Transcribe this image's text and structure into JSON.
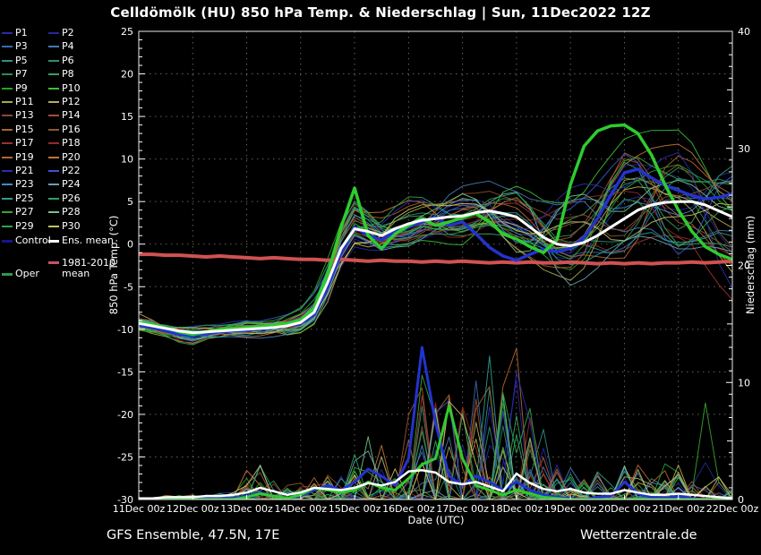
{
  "footer": {
    "left": "GFS Ensemble, 47.5N, 17E",
    "right": "Wetterzentrale.de"
  },
  "legend": {
    "members": [
      {
        "label": "P1",
        "color": "#2a2aa8"
      },
      {
        "label": "P2",
        "color": "#26269e"
      },
      {
        "label": "P3",
        "color": "#3a6ab4"
      },
      {
        "label": "P4",
        "color": "#4478b0"
      },
      {
        "label": "P5",
        "color": "#2e8f86"
      },
      {
        "label": "P6",
        "color": "#2e9070"
      },
      {
        "label": "P7",
        "color": "#2e8b57"
      },
      {
        "label": "P8",
        "color": "#3c9d66"
      },
      {
        "label": "P9",
        "color": "#28a028"
      },
      {
        "label": "P10",
        "color": "#38c038"
      },
      {
        "label": "P11",
        "color": "#a8a848"
      },
      {
        "label": "P12",
        "color": "#b4ae56"
      },
      {
        "label": "P13",
        "color": "#8b4a2a"
      },
      {
        "label": "P14",
        "color": "#a0522d"
      },
      {
        "label": "P15",
        "color": "#a86432"
      },
      {
        "label": "P16",
        "color": "#8b5a2b"
      },
      {
        "label": "P17",
        "color": "#a03030"
      },
      {
        "label": "P18",
        "color": "#962828"
      },
      {
        "label": "P19",
        "color": "#b46632"
      },
      {
        "label": "P20",
        "color": "#c27436"
      },
      {
        "label": "P21",
        "color": "#2c2cb0"
      },
      {
        "label": "P22",
        "color": "#3a55cc"
      },
      {
        "label": "P23",
        "color": "#4488cc"
      },
      {
        "label": "P24",
        "color": "#6aa0b4"
      },
      {
        "label": "P25",
        "color": "#2e9e90"
      },
      {
        "label": "P26",
        "color": "#2ea066"
      },
      {
        "label": "P27",
        "color": "#32a632"
      },
      {
        "label": "P28",
        "color": "#74c489"
      },
      {
        "label": "P29",
        "color": "#2aa64e"
      },
      {
        "label": "P30",
        "color": "#c2c266"
      }
    ],
    "control": {
      "label": "Control",
      "color": "#16168e"
    },
    "ens_mean": {
      "label": "Ens. mean",
      "color": "#ffffff"
    },
    "climate": {
      "label": "1981-2010 mean",
      "color": "#c25565"
    },
    "oper": {
      "label": "Oper",
      "color": "#2e9a50"
    }
  },
  "chart_data": {
    "type": "line",
    "title": "Celldömölk  (HU)  850 hPa Temp. & Niederschlag | Sun, 11Dec2022 12Z",
    "x_axis": {
      "label": "Date (UTC)",
      "tick_labels": [
        "11Dec 00z",
        "12Dec 00z",
        "13Dec 00z",
        "14Dec 00z",
        "15Dec 00z",
        "16Dec 00z",
        "17Dec 00z",
        "18Dec 00z",
        "19Dec 00z",
        "20Dec 00z",
        "21Dec 00z",
        "22Dec 00z"
      ],
      "steps_per_day": 4,
      "n_steps": 45
    },
    "y_left": {
      "label": "850 hPa Temp. (°C)",
      "min": -30,
      "max": 25,
      "tick_step": 5,
      "tick_labels": [
        "25",
        "20",
        "15",
        "10",
        "5",
        "0",
        "-5",
        "-10",
        "-15",
        "-20",
        "-25",
        "-30"
      ]
    },
    "y_right": {
      "label": "Niederschlag (mm)",
      "min": 0,
      "max": 40,
      "tick_step": 10,
      "tick_labels": [
        "40",
        "30",
        "20",
        "10",
        "0"
      ]
    },
    "grid": true,
    "legend_position": "left",
    "colors": {
      "control": "#2433cc",
      "oper": "#2ecc2e",
      "ens_mean": "#ffffff",
      "climate_mean": "#cf5252",
      "grid": "#6a6054",
      "frame": "#e8e8e8",
      "members": [
        "#2a2aa8",
        "#26269e",
        "#3a6ab4",
        "#4478b0",
        "#2e8f86",
        "#2e9070",
        "#2e8b57",
        "#3c9d66",
        "#28a028",
        "#38c038",
        "#a8a848",
        "#b4ae56",
        "#8b4a2a",
        "#a0522d",
        "#a86432",
        "#8b5a2b",
        "#a03030",
        "#962828",
        "#b46632",
        "#c27436",
        "#2c2cb0",
        "#3a55cc",
        "#4488cc",
        "#6aa0b4",
        "#2e9e90",
        "#2ea066",
        "#32a632",
        "#74c489",
        "#2aa64e",
        "#c2c266"
      ]
    },
    "series": {
      "temp": {
        "ens_mean": [
          -9.3,
          -9.6,
          -9.9,
          -10.2,
          -10.4,
          -10.3,
          -10.2,
          -10.1,
          -10,
          -9.9,
          -9.8,
          -9.6,
          -9.2,
          -8,
          -4.5,
          -0.5,
          1.8,
          1.5,
          1,
          1.8,
          2.4,
          2.8,
          3,
          3.2,
          3.3,
          3.7,
          3.9,
          3.6,
          3.2,
          2,
          0.8,
          0,
          -0.2,
          0.2,
          1,
          2,
          3,
          4,
          4.6,
          4.9,
          5,
          5,
          4.6,
          3.9,
          3.2
        ],
        "control": [
          -9.5,
          -9.8,
          -10.2,
          -10.6,
          -10.8,
          -10.5,
          -10.3,
          -10.2,
          -10.1,
          -10,
          -9.8,
          -9.6,
          -9.3,
          -8.3,
          -5,
          -1,
          2,
          1,
          0.5,
          1.5,
          2,
          2.6,
          3.1,
          2.2,
          2.6,
          1.2,
          -0.4,
          -1.4,
          -1.9,
          -1.2,
          -0.6,
          -0.9,
          -0.5,
          0.8,
          3,
          5.8,
          8.4,
          8.8,
          7.8,
          6.9,
          6.3,
          5.7,
          5.3,
          5.5,
          5.9
        ],
        "oper": [
          -9.2,
          -9.4,
          -9.8,
          -10.3,
          -10.6,
          -10.3,
          -10,
          -9.9,
          -9.8,
          -9.7,
          -9.5,
          -9.3,
          -8.9,
          -7.5,
          -3.5,
          2,
          6.6,
          1,
          -0.5,
          1.2,
          2.2,
          3,
          2.2,
          2.6,
          3.1,
          3.6,
          2.6,
          1.2,
          0.6,
          -0.3,
          -1,
          0.5,
          7,
          11.5,
          13.3,
          13.9,
          14,
          13,
          10.5,
          7,
          4,
          1.5,
          -0.3,
          -1.2,
          -1.8
        ],
        "climate_mean": [
          -1.2,
          -1.2,
          -1.3,
          -1.3,
          -1.4,
          -1.5,
          -1.4,
          -1.5,
          -1.6,
          -1.7,
          -1.6,
          -1.7,
          -1.8,
          -1.8,
          -1.9,
          -1.8,
          -1.9,
          -2,
          -1.9,
          -2,
          -2,
          -2.1,
          -2,
          -2.1,
          -2,
          -2.1,
          -2.2,
          -2.1,
          -2.2,
          -2.1,
          -2.2,
          -2.2,
          -2.1,
          -2.2,
          -2.3,
          -2.2,
          -2.3,
          -2.2,
          -2.3,
          -2.2,
          -2.2,
          -2.1,
          -2.2,
          -2.1,
          -2
        ],
        "envelope_min": [
          -10.2,
          -10.6,
          -11,
          -11.4,
          -11.6,
          -11.4,
          -11.2,
          -11.1,
          -11,
          -11,
          -10.9,
          -10.7,
          -10.4,
          -9.6,
          -7.5,
          -4,
          -1.5,
          -1.8,
          -2,
          -1,
          -0.5,
          0,
          0.2,
          0.2,
          0.4,
          0.6,
          0.2,
          -0.5,
          -1.2,
          -2.2,
          -3.2,
          -3.6,
          -3.8,
          -3.5,
          -3.2,
          -2.8,
          -2.3,
          -1.5,
          -0.8,
          -1,
          -1.2,
          -1.8,
          -2.8,
          -4,
          -5.2
        ],
        "envelope_max": [
          -8.4,
          -8.7,
          -9,
          -9.3,
          -9.4,
          -9.3,
          -9.1,
          -9,
          -8.9,
          -8.8,
          -8.6,
          -8.2,
          -7.6,
          -5.5,
          -1.5,
          2.5,
          5,
          4.5,
          4,
          4.5,
          5.2,
          5.8,
          6.2,
          6.5,
          6.8,
          7.2,
          7.5,
          7.2,
          6.8,
          6.2,
          5.8,
          5.6,
          6,
          7,
          8.5,
          10,
          11.5,
          12.3,
          12.8,
          13.1,
          13.2,
          12.5,
          11.5,
          10.5,
          10
        ]
      },
      "precip": {
        "ens_mean": [
          0.1,
          0.1,
          0.2,
          0.2,
          0.2,
          0.3,
          0.3,
          0.4,
          0.6,
          1,
          0.7,
          0.4,
          0.6,
          1,
          0.9,
          0.8,
          1,
          1.4,
          1.2,
          1.5,
          2.4,
          2.5,
          2.3,
          1.5,
          1.3,
          1.5,
          1.1,
          0.7,
          2.2,
          1.4,
          0.9,
          0.7,
          0.9,
          0.6,
          0.5,
          0.5,
          0.8,
          0.6,
          0.4,
          0.4,
          0.5,
          0.4,
          0.3,
          0.2,
          0.1
        ],
        "control": [
          0,
          0,
          0,
          0,
          0,
          0.1,
          0.1,
          0.1,
          0.3,
          0.6,
          0.3,
          0.1,
          0.3,
          0.8,
          1.2,
          0.8,
          1.5,
          2.6,
          2,
          1.2,
          3.5,
          13,
          6.5,
          2,
          1.2,
          2,
          1.5,
          0.8,
          1.5,
          0.8,
          0.4,
          0.2,
          0.1,
          0,
          0.2,
          0.3,
          1.5,
          0.5,
          0.2,
          0.1,
          0.3,
          0.1,
          0,
          0,
          0
        ],
        "oper": [
          0,
          0,
          0,
          0,
          0,
          0,
          0,
          0,
          0.2,
          0.5,
          0.3,
          0.1,
          0.4,
          1,
          0.8,
          0.6,
          0.8,
          1.5,
          1,
          0.8,
          1.8,
          3,
          3.5,
          8,
          3.5,
          1.2,
          0.8,
          0.4,
          0.8,
          0.5,
          0.2,
          0.1,
          0,
          0,
          0,
          0,
          0,
          0,
          0,
          0,
          0,
          0,
          0,
          0,
          0
        ],
        "activity_max": [
          0.3,
          0.3,
          0.4,
          0.4,
          0.5,
          0.5,
          0.6,
          0.8,
          2.5,
          3,
          2,
          1.2,
          1.8,
          2.5,
          2.2,
          2,
          4,
          5.5,
          5,
          5.5,
          8,
          11,
          9,
          9.5,
          10,
          12,
          14.2,
          12,
          14.3,
          8,
          6,
          4,
          3,
          2,
          2.5,
          2,
          3,
          3.2,
          2,
          3.6,
          3,
          2,
          8.5,
          3,
          1
        ]
      }
    }
  }
}
